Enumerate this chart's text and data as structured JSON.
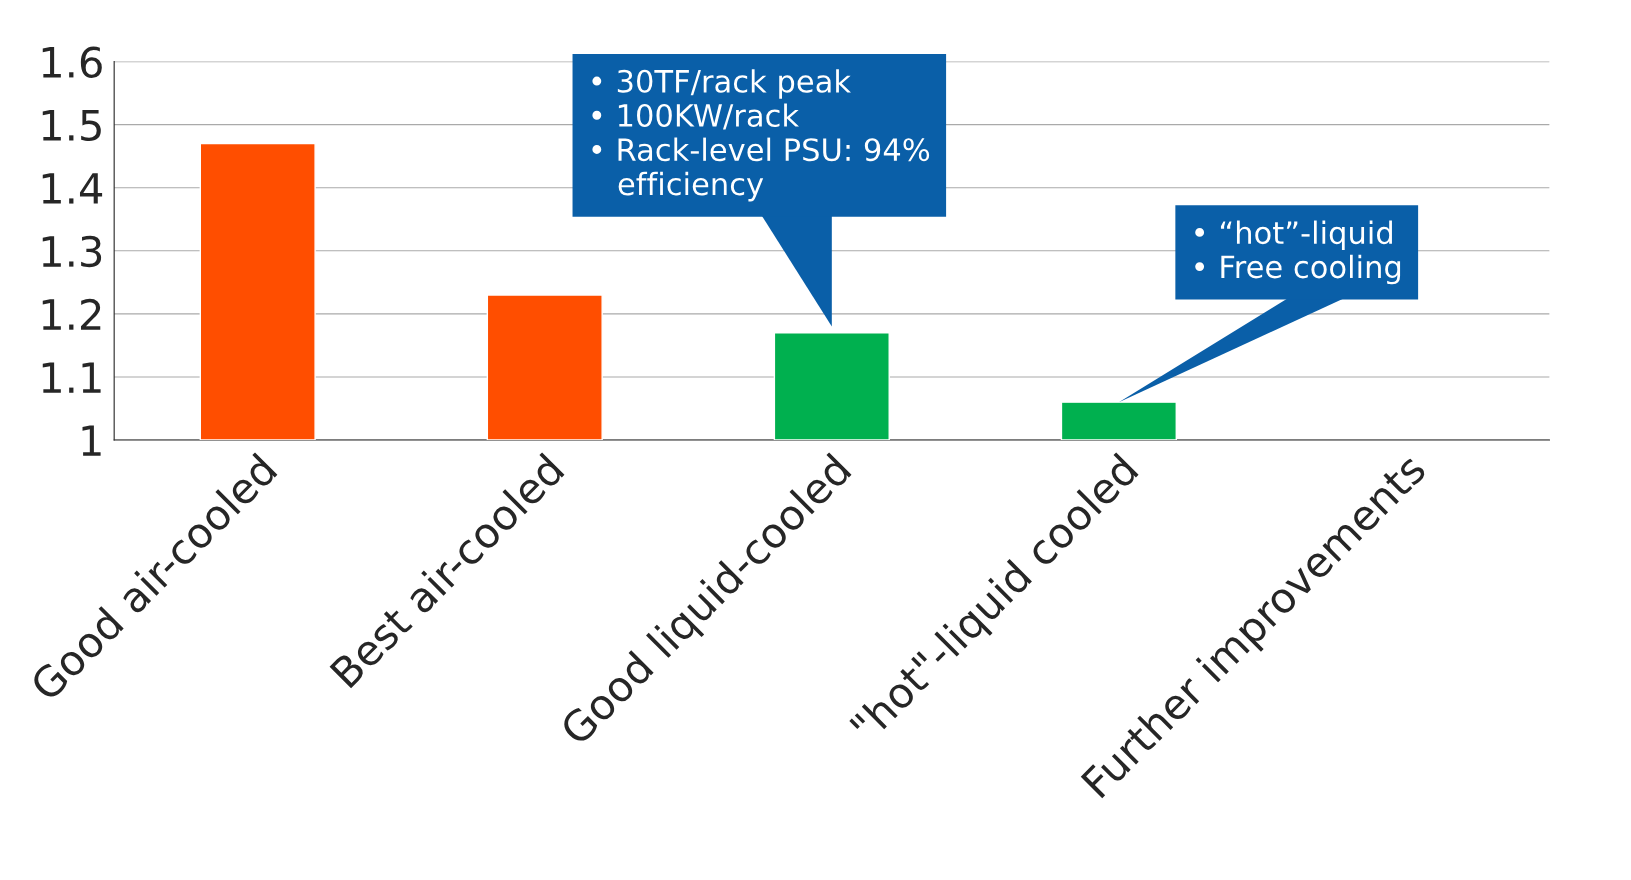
{
  "chart_data": {
    "type": "bar",
    "categories": [
      "Good air-cooled",
      "Best air-cooled",
      "Good liquid-cooled",
      "\"hot\"-liquid cooled",
      "Further improvements"
    ],
    "values": [
      1.47,
      1.23,
      1.17,
      1.06,
      null
    ],
    "colors": [
      "#ff4e00",
      "#ff4e00",
      "#00b04f",
      "#00b04f",
      "#00b04f"
    ],
    "ylim": [
      1,
      1.6
    ],
    "yticks": [
      1,
      1.1,
      1.2,
      1.3,
      1.4,
      1.5,
      1.6
    ],
    "grid": "y",
    "annotations": [
      "• 30TF/rack peak\n• 100KW/rack\n• Rack-level PSU: 94%\n   efficiency",
      "• “hot”-liquid\n• Free cooling"
    ]
  }
}
